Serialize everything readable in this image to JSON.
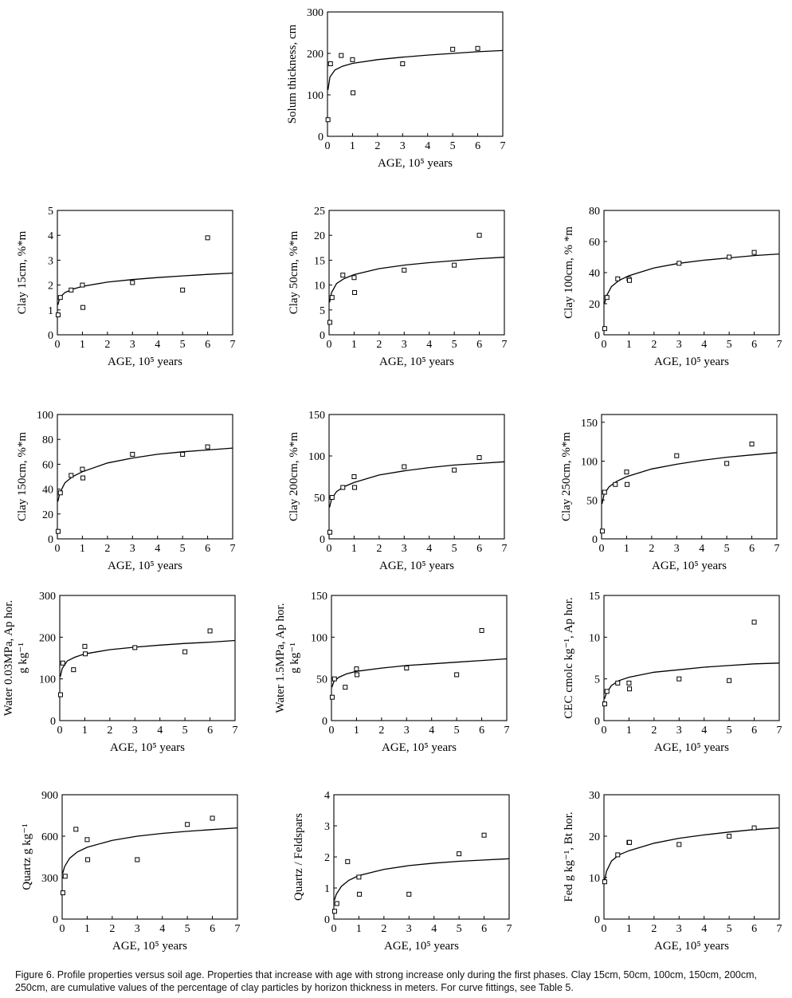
{
  "caption": "Figure 6. Profile properties versus soil age. Properties that increase with age with strong increase only during the first phases. Clay 15cm, 50cm, 100cm, 150cm, 200cm, 250cm, are cumulative values of the percentage of clay particles by horizon thickness in meters. For curve fittings, see Table 5.",
  "chart_data": [
    {
      "type": "scatter",
      "ylabel": [
        "Solum thickness,  cm"
      ],
      "xlabel": "AGE, 10⁵ years",
      "xlim": [
        0,
        7
      ],
      "ylim": [
        0,
        300
      ],
      "xticks": [
        0,
        1,
        2,
        3,
        4,
        5,
        6,
        7
      ],
      "yticks": [
        0,
        100,
        200,
        300
      ],
      "points": [
        [
          0.02,
          40
        ],
        [
          0.12,
          175
        ],
        [
          0.55,
          195
        ],
        [
          1.0,
          185
        ],
        [
          1.02,
          105
        ],
        [
          3.0,
          175
        ],
        [
          5.0,
          210
        ],
        [
          6.0,
          212
        ]
      ],
      "fit": [
        [
          0.02,
          112
        ],
        [
          0.1,
          143
        ],
        [
          0.3,
          160
        ],
        [
          0.6,
          169
        ],
        [
          1,
          176
        ],
        [
          2,
          185
        ],
        [
          3,
          191
        ],
        [
          4,
          196
        ],
        [
          5,
          200
        ],
        [
          6,
          204
        ],
        [
          7,
          207
        ]
      ]
    },
    {
      "type": "scatter",
      "ylabel": [
        "Clay 15cm,  %*m"
      ],
      "xlabel": "AGE, 10⁵ years",
      "xlim": [
        0,
        7
      ],
      "ylim": [
        0,
        5
      ],
      "xticks": [
        0,
        1,
        2,
        3,
        4,
        5,
        6,
        7
      ],
      "yticks": [
        0,
        1,
        2,
        3,
        4,
        5
      ],
      "points": [
        [
          0.03,
          0.8
        ],
        [
          0.12,
          1.5
        ],
        [
          0.55,
          1.8
        ],
        [
          1.0,
          2.0
        ],
        [
          1.02,
          1.1
        ],
        [
          3.0,
          2.1
        ],
        [
          5.0,
          1.8
        ],
        [
          6.0,
          3.9
        ]
      ],
      "fit": [
        [
          0.02,
          1.2
        ],
        [
          0.1,
          1.5
        ],
        [
          0.3,
          1.7
        ],
        [
          0.6,
          1.83
        ],
        [
          1,
          1.95
        ],
        [
          2,
          2.12
        ],
        [
          3,
          2.22
        ],
        [
          4,
          2.3
        ],
        [
          5,
          2.37
        ],
        [
          6,
          2.43
        ],
        [
          7,
          2.48
        ]
      ]
    },
    {
      "type": "scatter",
      "ylabel": [
        "Clay 50cm,  %*m"
      ],
      "xlabel": "AGE, 10⁵ years",
      "xlim": [
        0,
        7
      ],
      "ylim": [
        0,
        25
      ],
      "xticks": [
        0,
        1,
        2,
        3,
        4,
        5,
        6,
        7
      ],
      "yticks": [
        0,
        5,
        10,
        15,
        20,
        25
      ],
      "points": [
        [
          0.03,
          2.5
        ],
        [
          0.12,
          7.5
        ],
        [
          0.55,
          12
        ],
        [
          1.0,
          11.5
        ],
        [
          1.02,
          8.5
        ],
        [
          3.0,
          13
        ],
        [
          5.0,
          14
        ],
        [
          6.0,
          20
        ]
      ],
      "fit": [
        [
          0.02,
          6.5
        ],
        [
          0.1,
          8.5
        ],
        [
          0.3,
          10.3
        ],
        [
          0.6,
          11.3
        ],
        [
          1,
          12.1
        ],
        [
          2,
          13.3
        ],
        [
          3,
          14
        ],
        [
          4,
          14.5
        ],
        [
          5,
          14.9
        ],
        [
          6,
          15.3
        ],
        [
          7,
          15.6
        ]
      ]
    },
    {
      "type": "scatter",
      "ylabel": [
        "Clay 100cm,  % *m"
      ],
      "xlabel": "AGE, 10⁵ years",
      "xlim": [
        0,
        7
      ],
      "ylim": [
        0,
        80
      ],
      "xticks": [
        0,
        1,
        2,
        3,
        4,
        5,
        6,
        7
      ],
      "yticks": [
        0,
        20,
        40,
        60,
        80
      ],
      "points": [
        [
          0.03,
          4
        ],
        [
          0.12,
          24
        ],
        [
          0.55,
          36
        ],
        [
          1.0,
          36
        ],
        [
          1.02,
          35
        ],
        [
          3.0,
          46
        ],
        [
          5.0,
          50
        ],
        [
          6.0,
          53
        ]
      ],
      "fit": [
        [
          0.02,
          20
        ],
        [
          0.1,
          25
        ],
        [
          0.3,
          31
        ],
        [
          0.6,
          35
        ],
        [
          1,
          38
        ],
        [
          2,
          43
        ],
        [
          3,
          46
        ],
        [
          4,
          48
        ],
        [
          5,
          49.5
        ],
        [
          6,
          51
        ],
        [
          7,
          52
        ]
      ]
    },
    {
      "type": "scatter",
      "ylabel": [
        "Clay 150cm,  %*m"
      ],
      "xlabel": "AGE, 10⁵ years",
      "xlim": [
        0,
        7
      ],
      "ylim": [
        0,
        100
      ],
      "xticks": [
        0,
        1,
        2,
        3,
        4,
        5,
        6,
        7
      ],
      "yticks": [
        0,
        20,
        40,
        60,
        80,
        100
      ],
      "points": [
        [
          0.03,
          6
        ],
        [
          0.12,
          37
        ],
        [
          0.55,
          51
        ],
        [
          1.0,
          56
        ],
        [
          1.02,
          49
        ],
        [
          3.0,
          68
        ],
        [
          5.0,
          68
        ],
        [
          6.0,
          74
        ]
      ],
      "fit": [
        [
          0.02,
          30
        ],
        [
          0.1,
          37
        ],
        [
          0.3,
          45
        ],
        [
          0.6,
          50
        ],
        [
          1,
          54
        ],
        [
          2,
          61
        ],
        [
          3,
          65
        ],
        [
          4,
          68
        ],
        [
          5,
          70
        ],
        [
          6,
          71.5
        ],
        [
          7,
          73
        ]
      ]
    },
    {
      "type": "scatter",
      "ylabel": [
        "Clay 200cm, %*m"
      ],
      "xlabel": "AGE, 10⁵ years",
      "xlim": [
        0,
        7
      ],
      "ylim": [
        0,
        150
      ],
      "xticks": [
        0,
        1,
        2,
        3,
        4,
        5,
        6,
        7
      ],
      "yticks": [
        0,
        50,
        100,
        150
      ],
      "points": [
        [
          0.03,
          8
        ],
        [
          0.12,
          50
        ],
        [
          0.55,
          62
        ],
        [
          1.0,
          75
        ],
        [
          1.02,
          62
        ],
        [
          3.0,
          87
        ],
        [
          5.0,
          83
        ],
        [
          6.0,
          98
        ]
      ],
      "fit": [
        [
          0.02,
          38
        ],
        [
          0.1,
          48
        ],
        [
          0.3,
          57
        ],
        [
          0.6,
          63
        ],
        [
          1,
          68
        ],
        [
          2,
          77
        ],
        [
          3,
          82
        ],
        [
          4,
          86
        ],
        [
          5,
          89
        ],
        [
          6,
          91
        ],
        [
          7,
          93
        ]
      ]
    },
    {
      "type": "scatter",
      "ylabel": [
        "Clay 250cm,  %*m"
      ],
      "xlabel": "AGE, 10⁵ years",
      "xlim": [
        0,
        7
      ],
      "ylim": [
        0,
        160
      ],
      "xticks": [
        0,
        1,
        2,
        3,
        4,
        5,
        6,
        7
      ],
      "yticks": [
        0,
        50,
        100,
        150
      ],
      "points": [
        [
          0.03,
          10
        ],
        [
          0.12,
          60
        ],
        [
          0.55,
          70
        ],
        [
          1.0,
          86
        ],
        [
          1.02,
          70
        ],
        [
          3.0,
          107
        ],
        [
          5.0,
          97
        ],
        [
          6.0,
          122
        ]
      ],
      "fit": [
        [
          0.02,
          45
        ],
        [
          0.1,
          57
        ],
        [
          0.3,
          67
        ],
        [
          0.6,
          74
        ],
        [
          1,
          80
        ],
        [
          2,
          90
        ],
        [
          3,
          96
        ],
        [
          4,
          101
        ],
        [
          5,
          105
        ],
        [
          6,
          108
        ],
        [
          7,
          111
        ]
      ]
    },
    {
      "type": "scatter",
      "ylabel": [
        "Water 0.03MPa,  Ap hor.",
        "g kg⁻¹"
      ],
      "xlabel": "AGE, 10⁵ years",
      "xlim": [
        0,
        7
      ],
      "ylim": [
        0,
        300
      ],
      "xticks": [
        0,
        1,
        2,
        3,
        4,
        5,
        6,
        7
      ],
      "yticks": [
        0,
        100,
        200,
        300
      ],
      "points": [
        [
          0.03,
          62
        ],
        [
          0.12,
          138
        ],
        [
          0.55,
          122
        ],
        [
          1.0,
          178
        ],
        [
          1.02,
          160
        ],
        [
          3.0,
          175
        ],
        [
          5.0,
          165
        ],
        [
          6.0,
          215
        ]
      ],
      "fit": [
        [
          0.02,
          105
        ],
        [
          0.1,
          125
        ],
        [
          0.3,
          143
        ],
        [
          0.6,
          152
        ],
        [
          1,
          160
        ],
        [
          2,
          170
        ],
        [
          3,
          176
        ],
        [
          4,
          181
        ],
        [
          5,
          185
        ],
        [
          6,
          188
        ],
        [
          7,
          192
        ]
      ]
    },
    {
      "type": "scatter",
      "ylabel": [
        "Water 1.5MPa,  Ap hor.",
        "g kg⁻¹"
      ],
      "xlabel": "AGE, 10⁵ years",
      "xlim": [
        0,
        7
      ],
      "ylim": [
        0,
        150
      ],
      "xticks": [
        0,
        1,
        2,
        3,
        4,
        5,
        6,
        7
      ],
      "yticks": [
        0,
        50,
        100,
        150
      ],
      "points": [
        [
          0.03,
          28
        ],
        [
          0.12,
          50
        ],
        [
          0.55,
          40
        ],
        [
          1.0,
          62
        ],
        [
          1.02,
          55
        ],
        [
          3.0,
          63
        ],
        [
          5.0,
          55
        ],
        [
          6.0,
          108
        ]
      ],
      "fit": [
        [
          0.02,
          40
        ],
        [
          0.1,
          47
        ],
        [
          0.3,
          52
        ],
        [
          0.6,
          56
        ],
        [
          1,
          59
        ],
        [
          2,
          63
        ],
        [
          3,
          66
        ],
        [
          4,
          68
        ],
        [
          5,
          70
        ],
        [
          6,
          72
        ],
        [
          7,
          74
        ]
      ]
    },
    {
      "type": "scatter",
      "ylabel": [
        "CEC cmolc kg⁻¹,  Ap hor."
      ],
      "xlabel": "AGE, 10⁵ years",
      "xlim": [
        0,
        7
      ],
      "ylim": [
        0,
        15
      ],
      "xticks": [
        0,
        1,
        2,
        3,
        4,
        5,
        6,
        7
      ],
      "yticks": [
        0,
        5,
        10,
        15
      ],
      "points": [
        [
          0.03,
          2
        ],
        [
          0.12,
          3.5
        ],
        [
          0.55,
          4.5
        ],
        [
          1.0,
          4.5
        ],
        [
          1.02,
          3.8
        ],
        [
          3.0,
          5
        ],
        [
          5.0,
          4.8
        ],
        [
          6.0,
          11.8
        ]
      ],
      "fit": [
        [
          0.02,
          2.6
        ],
        [
          0.1,
          3.3
        ],
        [
          0.3,
          4.2
        ],
        [
          0.6,
          4.8
        ],
        [
          1,
          5.2
        ],
        [
          2,
          5.8
        ],
        [
          3,
          6.1
        ],
        [
          4,
          6.4
        ],
        [
          5,
          6.6
        ],
        [
          6,
          6.8
        ],
        [
          7,
          6.9
        ]
      ]
    },
    {
      "type": "scatter",
      "ylabel": [
        "Quartz  g kg⁻¹"
      ],
      "xlabel": "AGE, 10⁵ years",
      "xlim": [
        0,
        7
      ],
      "ylim": [
        0,
        900
      ],
      "xticks": [
        0,
        1,
        2,
        3,
        4,
        5,
        6,
        7
      ],
      "yticks": [
        0,
        300,
        600,
        900
      ],
      "points": [
        [
          0.03,
          190
        ],
        [
          0.12,
          310
        ],
        [
          0.55,
          650
        ],
        [
          1.0,
          575
        ],
        [
          1.02,
          430
        ],
        [
          3.0,
          430
        ],
        [
          5.0,
          685
        ],
        [
          6.0,
          730
        ]
      ],
      "fit": [
        [
          0.02,
          330
        ],
        [
          0.1,
          380
        ],
        [
          0.3,
          440
        ],
        [
          0.6,
          485
        ],
        [
          1,
          520
        ],
        [
          2,
          570
        ],
        [
          3,
          600
        ],
        [
          4,
          620
        ],
        [
          5,
          635
        ],
        [
          6,
          648
        ],
        [
          7,
          660
        ]
      ]
    },
    {
      "type": "scatter",
      "ylabel": [
        "Quartz / Feldspars"
      ],
      "xlabel": "AGE, 10⁵ years",
      "xlim": [
        0,
        7
      ],
      "ylim": [
        0,
        4
      ],
      "xticks": [
        0,
        1,
        2,
        3,
        4,
        5,
        6,
        7
      ],
      "yticks": [
        0,
        1,
        2,
        3,
        4
      ],
      "points": [
        [
          0.03,
          0.25
        ],
        [
          0.12,
          0.5
        ],
        [
          0.55,
          1.85
        ],
        [
          1.0,
          1.35
        ],
        [
          1.02,
          0.8
        ],
        [
          3.0,
          0.8
        ],
        [
          5.0,
          2.1
        ],
        [
          6.0,
          2.7
        ]
      ],
      "fit": [
        [
          0.02,
          0.6
        ],
        [
          0.1,
          0.8
        ],
        [
          0.3,
          1.05
        ],
        [
          0.6,
          1.25
        ],
        [
          1,
          1.4
        ],
        [
          2,
          1.6
        ],
        [
          3,
          1.72
        ],
        [
          4,
          1.8
        ],
        [
          5,
          1.86
        ],
        [
          6,
          1.9
        ],
        [
          7,
          1.94
        ]
      ]
    },
    {
      "type": "scatter",
      "ylabel": [
        "Fed g kg⁻¹,  Bt hor."
      ],
      "xlabel": "AGE, 10⁵ years",
      "xlim": [
        0,
        7
      ],
      "ylim": [
        0,
        30
      ],
      "xticks": [
        0,
        1,
        2,
        3,
        4,
        5,
        6,
        7
      ],
      "yticks": [
        0,
        10,
        20,
        30
      ],
      "points": [
        [
          0.03,
          9
        ],
        [
          0.55,
          15.5
        ],
        [
          1.0,
          18.5
        ],
        [
          1.02,
          18.5
        ],
        [
          3.0,
          18
        ],
        [
          5.0,
          20
        ],
        [
          6.0,
          22
        ]
      ],
      "fit": [
        [
          0.02,
          9
        ],
        [
          0.1,
          11.5
        ],
        [
          0.3,
          14
        ],
        [
          0.6,
          15.5
        ],
        [
          1,
          16.5
        ],
        [
          2,
          18.3
        ],
        [
          3,
          19.5
        ],
        [
          4,
          20.3
        ],
        [
          5,
          21
        ],
        [
          6,
          21.6
        ],
        [
          7,
          22
        ]
      ]
    }
  ]
}
